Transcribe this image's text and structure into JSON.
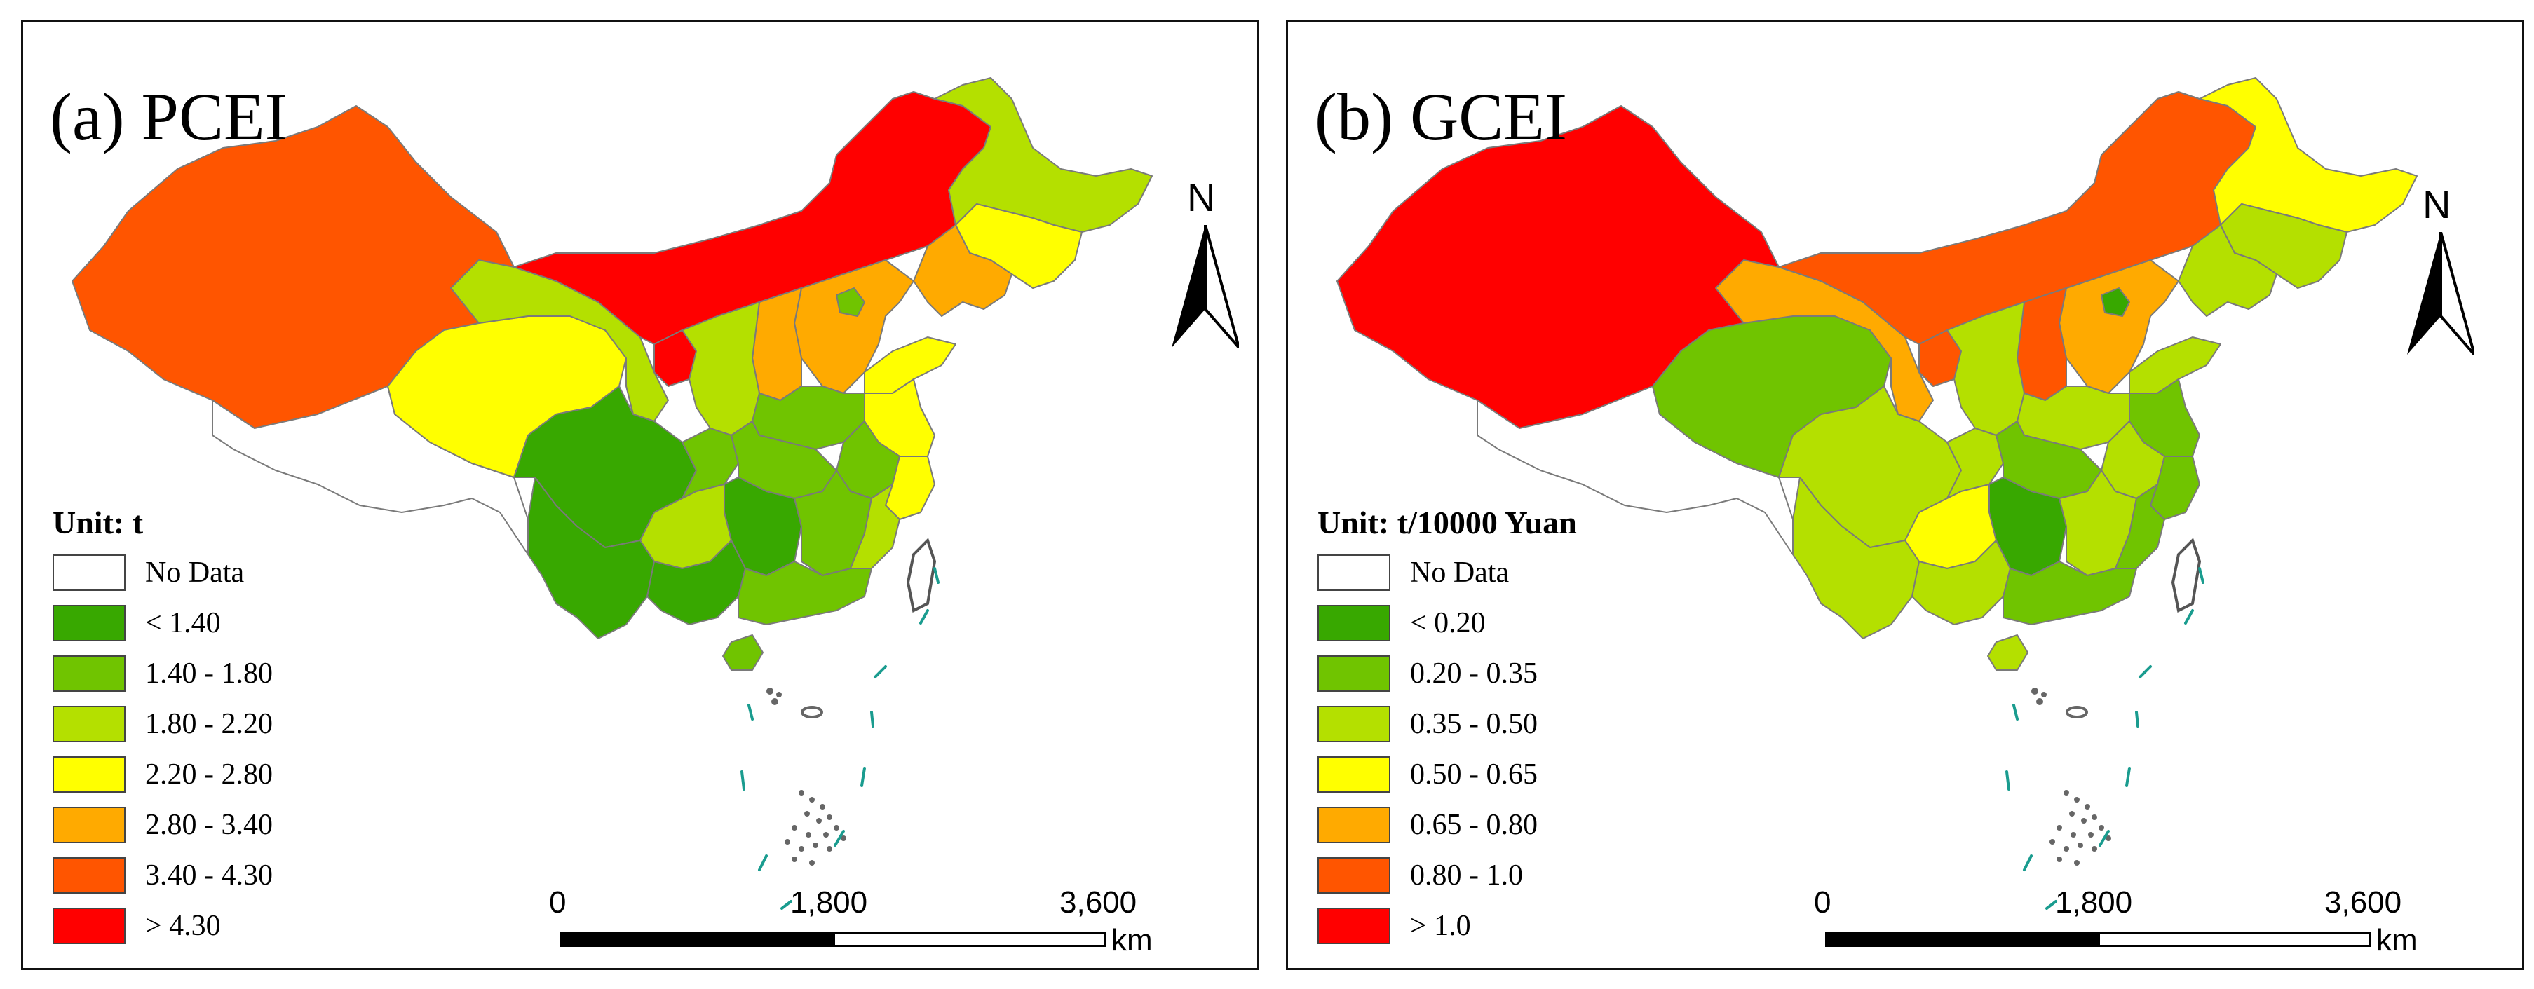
{
  "panels": [
    {
      "title": "(a) PCEI",
      "unit": "Unit: t",
      "legend": [
        {
          "label": "No Data",
          "color": "#ffffff"
        },
        {
          "label": "< 1.40",
          "color": "#38a800"
        },
        {
          "label": "1.40 - 1.80",
          "color": "#70c400"
        },
        {
          "label": "1.80 - 2.20",
          "color": "#b4e000"
        },
        {
          "label": "2.20 - 2.80",
          "color": "#ffff00"
        },
        {
          "label": "2.80 - 3.40",
          "color": "#ffaa00"
        },
        {
          "label": "3.40 - 4.30",
          "color": "#ff5500"
        },
        {
          "label": "> 4.30",
          "color": "#ff0000"
        }
      ],
      "scale": {
        "ticks": [
          "0",
          "1,800",
          "3,600"
        ],
        "unit": "km"
      },
      "north": "N",
      "regions": {
        "xinjiang": "#ff5500",
        "tibet": "#ffffff",
        "qinghai": "#ffff00",
        "gansu": "#b4e000",
        "inner_mongolia": "#ff0000",
        "heilongjiang": "#b4e000",
        "jilin": "#ffff00",
        "liaoning": "#ffaa00",
        "hebei": "#ffaa00",
        "beijing": "#70c400",
        "shandong": "#ffff00",
        "shanxi": "#ffaa00",
        "ningxia": "#ff0000",
        "shaanxi": "#b4e000",
        "henan": "#70c400",
        "jiangsu": "#ffff00",
        "anhui": "#70c400",
        "zhejiang": "#ffff00",
        "sichuan": "#38a800",
        "chongqing": "#70c400",
        "hubei": "#70c400",
        "hunan": "#38a800",
        "jiangxi": "#70c400",
        "fujian": "#b4e000",
        "yunnan": "#38a800",
        "guizhou": "#b4e000",
        "guangxi": "#38a800",
        "guangdong": "#70c400",
        "hainan": "#70c400"
      }
    },
    {
      "title": "(b) GCEI",
      "unit": "Unit: t/10000 Yuan",
      "legend": [
        {
          "label": "No Data",
          "color": "#ffffff"
        },
        {
          "label": "< 0.20",
          "color": "#38a800"
        },
        {
          "label": "0.20 - 0.35",
          "color": "#70c400"
        },
        {
          "label": "0.35 - 0.50",
          "color": "#b4e000"
        },
        {
          "label": "0.50 - 0.65",
          "color": "#ffff00"
        },
        {
          "label": "0.65 - 0.80",
          "color": "#ffaa00"
        },
        {
          "label": "0.80 - 1.0",
          "color": "#ff5500"
        },
        {
          "label": "> 1.0",
          "color": "#ff0000"
        }
      ],
      "scale": {
        "ticks": [
          "0",
          "1,800",
          "3,600"
        ],
        "unit": "km"
      },
      "north": "N",
      "regions": {
        "xinjiang": "#ff0000",
        "tibet": "#ffffff",
        "qinghai": "#70c400",
        "gansu": "#ffaa00",
        "inner_mongolia": "#ff5500",
        "heilongjiang": "#ffff00",
        "jilin": "#b4e000",
        "liaoning": "#b4e000",
        "hebei": "#ffaa00",
        "beijing": "#38a800",
        "shandong": "#b4e000",
        "shanxi": "#ff5500",
        "ningxia": "#ff5500",
        "shaanxi": "#b4e000",
        "henan": "#b4e000",
        "jiangsu": "#70c400",
        "anhui": "#b4e000",
        "zhejiang": "#70c400",
        "sichuan": "#b4e000",
        "chongqing": "#b4e000",
        "hubei": "#70c400",
        "hunan": "#38a800",
        "jiangxi": "#b4e000",
        "fujian": "#70c400",
        "yunnan": "#b4e000",
        "guizhou": "#ffff00",
        "guangxi": "#b4e000",
        "guangdong": "#70c400",
        "hainan": "#b4e000"
      }
    }
  ]
}
